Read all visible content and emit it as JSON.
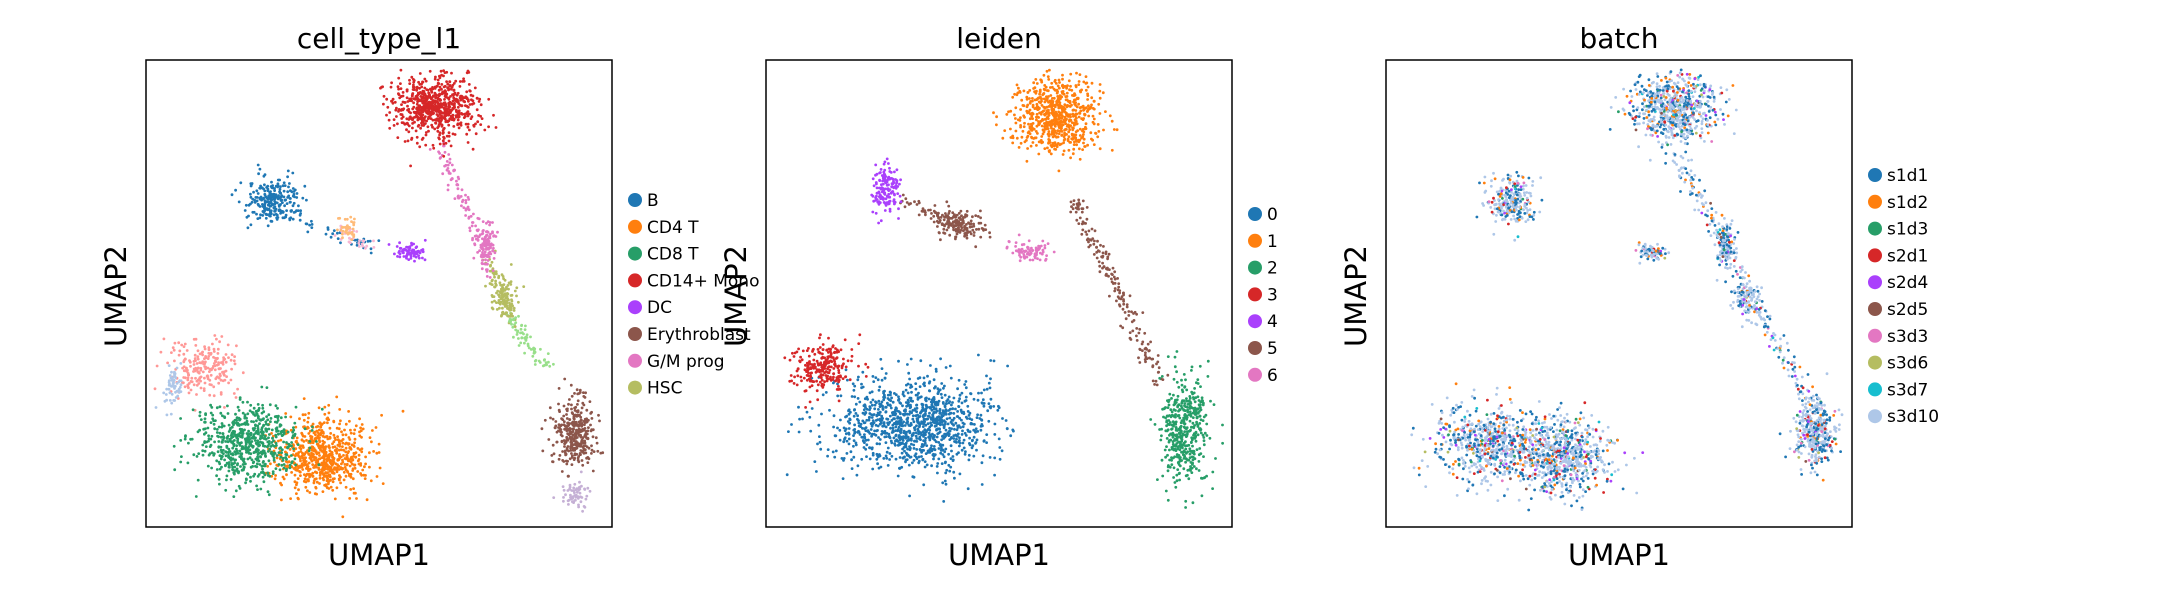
{
  "chart_data": [
    {
      "type": "scatter",
      "title": "cell_type_l1",
      "xlabel": "UMAP1",
      "ylabel": "UMAP2",
      "grid": false,
      "ticks": "none",
      "legend_position": "right",
      "legend": [
        {
          "label": "B",
          "color": "#1f77b4"
        },
        {
          "label": "CD4 T",
          "color": "#ff7f0e"
        },
        {
          "label": "CD8 T",
          "color": "#279e68"
        },
        {
          "label": "CD14+ Mono",
          "color": "#d62728"
        },
        {
          "label": "DC",
          "color": "#aa40fc"
        },
        {
          "label": "Erythroblast",
          "color": "#8c564b"
        },
        {
          "label": "G/M prog",
          "color": "#e377c2"
        },
        {
          "label": "HSC",
          "color": "#b5bd61"
        }
      ],
      "clusters": [
        {
          "category": "CD4 T",
          "cx": 0.38,
          "cy": 0.85,
          "rx": 0.1,
          "ry": 0.08,
          "n": 700
        },
        {
          "category": "CD8 T",
          "cx": 0.22,
          "cy": 0.82,
          "rx": 0.11,
          "ry": 0.08,
          "n": 650
        },
        {
          "category": "CD14+ Mono",
          "cx": 0.62,
          "cy": 0.1,
          "rx": 0.09,
          "ry": 0.07,
          "n": 700
        },
        {
          "category": "B",
          "cx": 0.27,
          "cy": 0.3,
          "rx": 0.05,
          "ry": 0.05,
          "n": 250
        },
        {
          "category": "Erythroblast",
          "cx": 0.92,
          "cy": 0.8,
          "rx": 0.04,
          "ry": 0.07,
          "n": 350
        },
        {
          "category": "DC",
          "cx": 0.57,
          "cy": 0.41,
          "rx": 0.03,
          "ry": 0.02,
          "n": 80
        },
        {
          "category": "G/M prog",
          "cx": 0.73,
          "cy": 0.4,
          "rx": 0.02,
          "ry": 0.05,
          "n": 120
        },
        {
          "category": "HSC",
          "cx": 0.77,
          "cy": 0.51,
          "rx": 0.03,
          "ry": 0.04,
          "n": 100
        }
      ]
    },
    {
      "type": "scatter",
      "title": "leiden",
      "xlabel": "UMAP1",
      "ylabel": "UMAP2",
      "grid": false,
      "ticks": "none",
      "legend_position": "right",
      "legend": [
        {
          "label": "0",
          "color": "#1f77b4"
        },
        {
          "label": "1",
          "color": "#ff7f0e"
        },
        {
          "label": "2",
          "color": "#279e68"
        },
        {
          "label": "3",
          "color": "#d62728"
        },
        {
          "label": "4",
          "color": "#aa40fc"
        },
        {
          "label": "5",
          "color": "#8c564b"
        },
        {
          "label": "6",
          "color": "#e377c2"
        }
      ],
      "clusters": [
        {
          "category": "0",
          "cx": 0.32,
          "cy": 0.78,
          "rx": 0.17,
          "ry": 0.1,
          "n": 1100
        },
        {
          "category": "1",
          "cx": 0.62,
          "cy": 0.12,
          "rx": 0.09,
          "ry": 0.08,
          "n": 700
        },
        {
          "category": "2",
          "cx": 0.9,
          "cy": 0.79,
          "rx": 0.05,
          "ry": 0.12,
          "n": 450
        },
        {
          "category": "3",
          "cx": 0.12,
          "cy": 0.66,
          "rx": 0.06,
          "ry": 0.05,
          "n": 250
        },
        {
          "category": "4",
          "cx": 0.26,
          "cy": 0.27,
          "rx": 0.03,
          "ry": 0.05,
          "n": 150
        },
        {
          "category": "5",
          "cx": 0.41,
          "cy": 0.35,
          "rx": 0.05,
          "ry": 0.03,
          "n": 150
        },
        {
          "category": "6",
          "cx": 0.57,
          "cy": 0.41,
          "rx": 0.03,
          "ry": 0.02,
          "n": 60
        }
      ]
    },
    {
      "type": "scatter",
      "title": "batch",
      "xlabel": "UMAP1",
      "ylabel": "UMAP2",
      "grid": false,
      "ticks": "none",
      "legend_position": "right",
      "legend": [
        {
          "label": "s1d1",
          "color": "#1f77b4"
        },
        {
          "label": "s1d2",
          "color": "#ff7f0e"
        },
        {
          "label": "s1d3",
          "color": "#279e68"
        },
        {
          "label": "s2d1",
          "color": "#d62728"
        },
        {
          "label": "s2d4",
          "color": "#aa40fc"
        },
        {
          "label": "s2d5",
          "color": "#8c564b"
        },
        {
          "label": "s3d3",
          "color": "#e377c2"
        },
        {
          "label": "s3d6",
          "color": "#b5bd61"
        },
        {
          "label": "s3d7",
          "color": "#17becf"
        },
        {
          "label": "s3d10",
          "color": "#aec7e8"
        }
      ]
    }
  ]
}
